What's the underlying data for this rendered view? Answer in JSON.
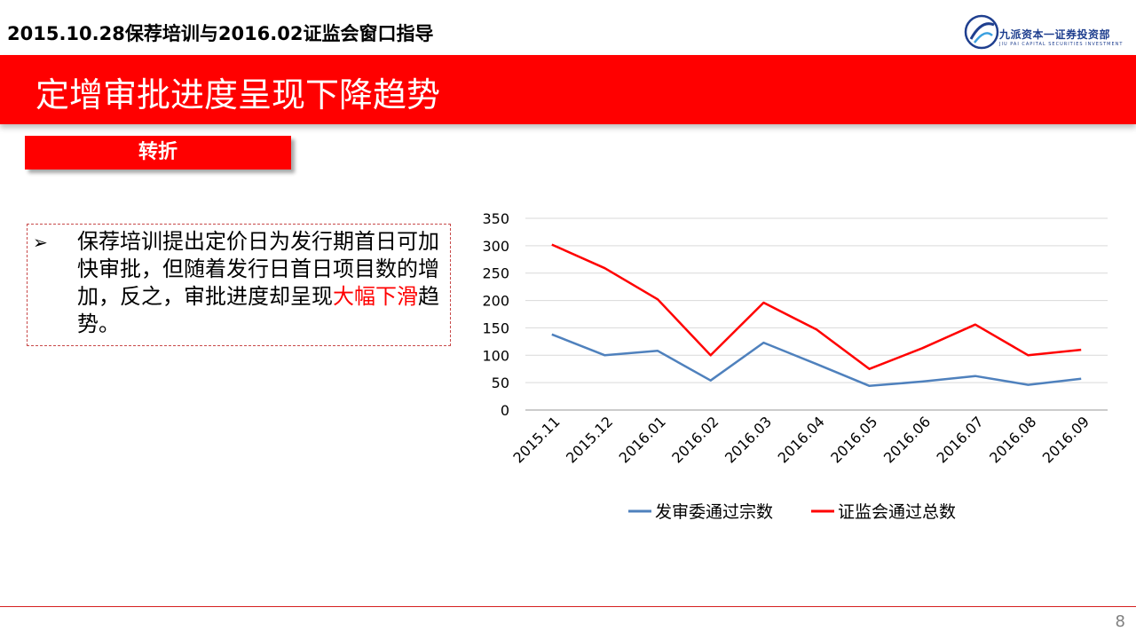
{
  "header": {
    "title": "2015.10.28保荐培训与2016.02证监会窗口指导",
    "logo_cn": "九派资本一证券投资部",
    "logo_en": "JIU PAI CAPITAL   SECURITIES INVESTMENT"
  },
  "banner": {
    "title": "定增审批进度呈现下降趋势"
  },
  "tag": {
    "label": "转折"
  },
  "textbox": {
    "bullet": "➢",
    "text_before": "保荐培训提出定价日为发行期首日可加快审批，但随着发行日首日项目数的增加，反之，审批进度却呈现",
    "highlight": "大幅下滑",
    "text_after": "趋势。",
    "highlight_color": "#ff0000"
  },
  "footer": {
    "page_number": "8"
  },
  "chart_data": {
    "type": "line",
    "title": "",
    "xlabel": "",
    "ylabel": "",
    "ylim": [
      0,
      350
    ],
    "yticks": [
      0,
      50,
      100,
      150,
      200,
      250,
      300,
      350
    ],
    "grid": true,
    "legend_position": "bottom",
    "categories": [
      "2015.11",
      "2015.12",
      "2016.01",
      "2016.02",
      "2016.03",
      "2016.04",
      "2016.05",
      "2016.06",
      "2016.07",
      "2016.08",
      "2016.09"
    ],
    "series": [
      {
        "name": "发审委通过宗数",
        "color": "#4f81bd",
        "values": [
          138,
          100,
          108,
          54,
          123,
          84,
          44,
          52,
          62,
          46,
          57
        ]
      },
      {
        "name": "证监会通过总数",
        "color": "#ff0000",
        "values": [
          302,
          259,
          202,
          100,
          196,
          147,
          75,
          113,
          156,
          100,
          110
        ]
      }
    ]
  }
}
